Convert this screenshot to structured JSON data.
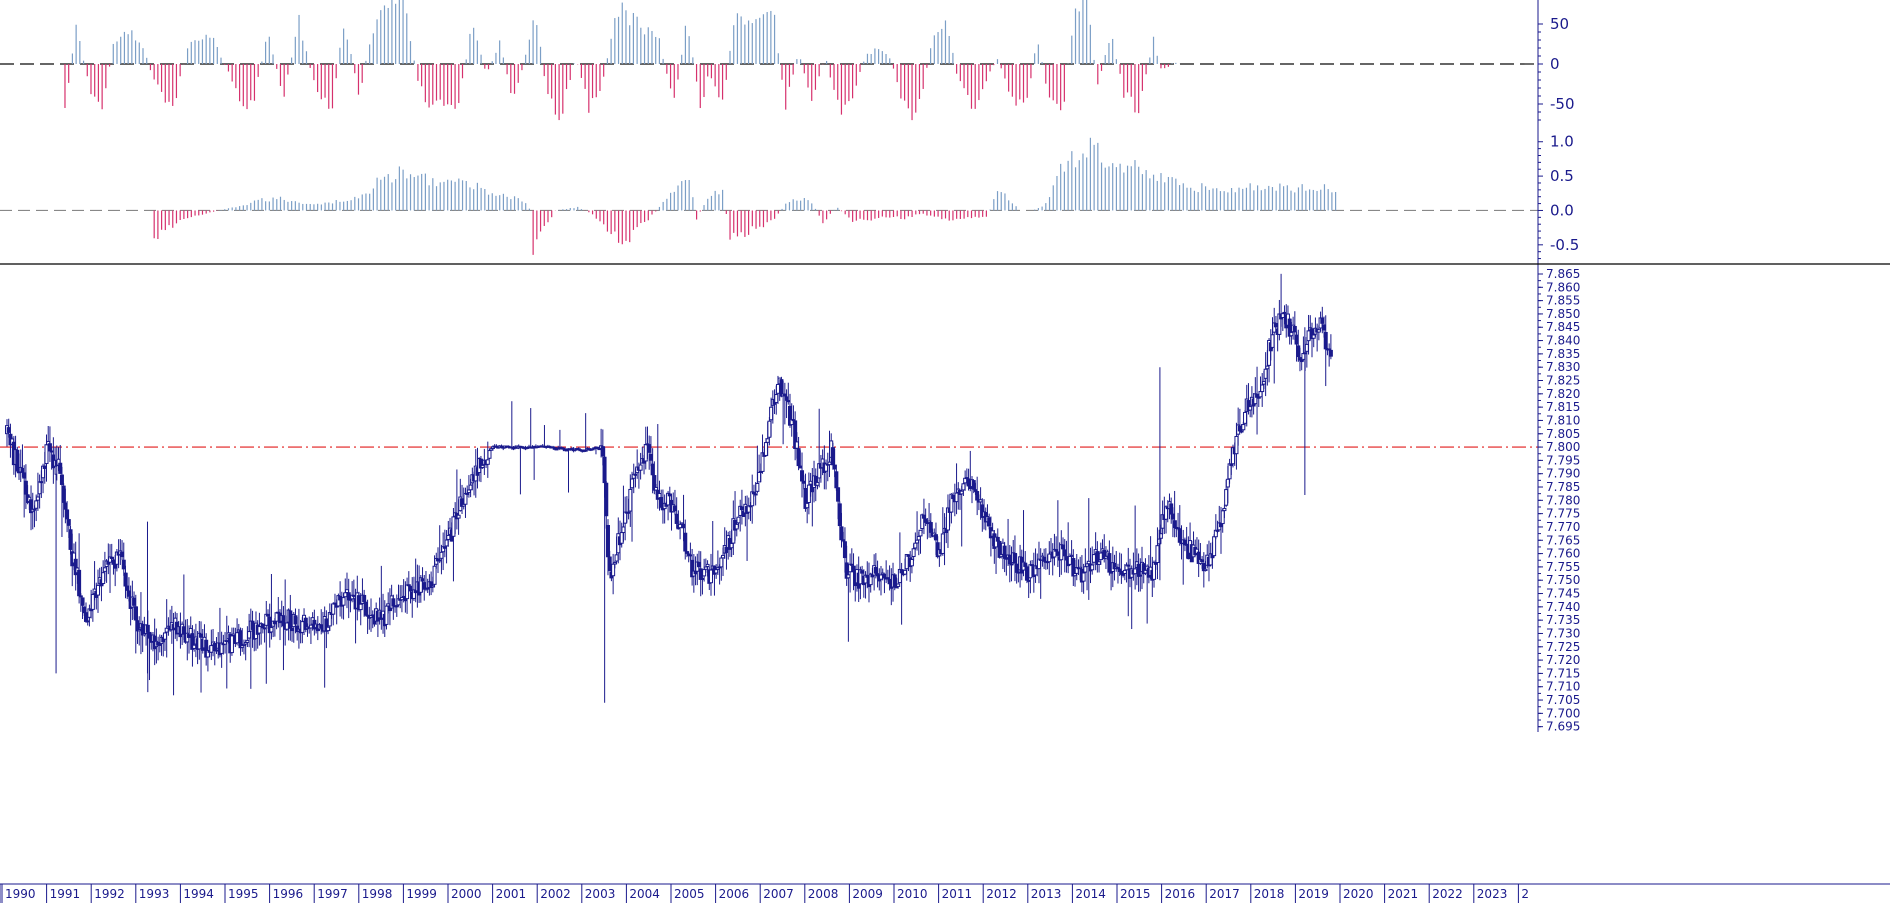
{
  "colors": {
    "axis": "#1a1a8c",
    "candle": "#1a1a8c",
    "positive": "#7b9ec6",
    "negative": "#d6316d",
    "reference": "#e21b1b",
    "zero_line_top": "#333333",
    "zero_line_mid": "#888888",
    "separator": "#000000"
  },
  "chart_data": [
    {
      "type": "bar",
      "panel": "top-oscillator",
      "ylim": [
        -80,
        80
      ],
      "y_ticks": [
        "50",
        "0",
        "-50"
      ],
      "y_tick_values": [
        50,
        0,
        -50
      ],
      "zero_line": "dashed",
      "x_start": 1991.3,
      "x_end": 2019.85,
      "x_step": 0.0833,
      "anchors": [
        [
          1991.3,
          -55
        ],
        [
          1991.55,
          48
        ],
        [
          1991.85,
          -30
        ],
        [
          1992.1,
          -70
        ],
        [
          1992.4,
          30
        ],
        [
          1992.75,
          40
        ],
        [
          1993.05,
          22
        ],
        [
          1993.35,
          -30
        ],
        [
          1993.7,
          -60
        ],
        [
          1994.1,
          30
        ],
        [
          1994.55,
          42
        ],
        [
          1994.95,
          -10
        ],
        [
          1995.3,
          -65
        ],
        [
          1995.55,
          -40
        ],
        [
          1995.85,
          40
        ],
        [
          1996.2,
          -45
        ],
        [
          1996.55,
          58
        ],
        [
          1996.9,
          -30
        ],
        [
          1997.3,
          -55
        ],
        [
          1997.55,
          60
        ],
        [
          1997.9,
          -40
        ],
        [
          1998.15,
          35
        ],
        [
          1998.55,
          82
        ],
        [
          1998.95,
          72
        ],
        [
          1999.2,
          -20
        ],
        [
          1999.45,
          -55
        ],
        [
          1999.8,
          -60
        ],
        [
          2000.15,
          -45
        ],
        [
          2000.45,
          60
        ],
        [
          2000.75,
          -15
        ],
        [
          2001.05,
          30
        ],
        [
          2001.35,
          -55
        ],
        [
          2001.6,
          5
        ],
        [
          2001.85,
          70
        ],
        [
          2002.1,
          -40
        ],
        [
          2002.4,
          -75
        ],
        [
          2002.75,
          10
        ],
        [
          2003.05,
          -60
        ],
        [
          2003.35,
          -30
        ],
        [
          2003.65,
          75
        ],
        [
          2003.95,
          60
        ],
        [
          2004.3,
          45
        ],
        [
          2004.6,
          40
        ],
        [
          2004.95,
          -60
        ],
        [
          2005.25,
          60
        ],
        [
          2005.55,
          -60
        ],
        [
          2005.75,
          -10
        ],
        [
          2006.05,
          -55
        ],
        [
          2006.3,
          60
        ],
        [
          2006.6,
          50
        ],
        [
          2006.9,
          55
        ],
        [
          2007.2,
          60
        ],
        [
          2007.45,
          -55
        ],
        [
          2007.75,
          15
        ],
        [
          2008.05,
          -45
        ],
        [
          2008.35,
          10
        ],
        [
          2008.65,
          -65
        ],
        [
          2008.95,
          -40
        ],
        [
          2009.25,
          10
        ],
        [
          2009.5,
          20
        ],
        [
          2009.8,
          8
        ],
        [
          2010.1,
          -50
        ],
        [
          2010.4,
          -70
        ],
        [
          2010.75,
          30
        ],
        [
          2011.05,
          60
        ],
        [
          2011.3,
          -15
        ],
        [
          2011.6,
          -60
        ],
        [
          2011.9,
          -30
        ],
        [
          2012.2,
          8
        ],
        [
          2012.5,
          -40
        ],
        [
          2012.85,
          -60
        ],
        [
          2013.1,
          35
        ],
        [
          2013.35,
          -40
        ],
        [
          2013.65,
          -70
        ],
        [
          2013.95,
          80
        ],
        [
          2014.2,
          85
        ],
        [
          2014.45,
          -30
        ],
        [
          2014.75,
          40
        ],
        [
          2015.05,
          -40
        ],
        [
          2015.4,
          -60
        ],
        [
          2015.7,
          35
        ],
        [
          2015.85,
          -5
        ],
        [
          2016.0,
          -5
        ],
        [
          2016.15,
          2
        ],
        [
          2016.3,
          0
        ]
      ]
    },
    {
      "type": "bar",
      "panel": "middle-oscillator",
      "ylim": [
        -0.75,
        1.2
      ],
      "y_ticks": [
        "1.0",
        "0.5",
        "0.0",
        "-0.5"
      ],
      "y_tick_values": [
        1.0,
        0.5,
        0.0,
        -0.5
      ],
      "zero_line": "dashed",
      "x_start": 1993.3,
      "x_end": 2019.85,
      "x_step": 0.0833,
      "anchors": [
        [
          1993.3,
          -0.4
        ],
        [
          1993.9,
          -0.15
        ],
        [
          1994.4,
          -0.05
        ],
        [
          1994.9,
          0.02
        ],
        [
          1995.3,
          0.08
        ],
        [
          1995.6,
          0.15
        ],
        [
          1996.1,
          0.18
        ],
        [
          1996.6,
          0.12
        ],
        [
          1997.0,
          0.1
        ],
        [
          1997.5,
          0.15
        ],
        [
          1997.95,
          0.2
        ],
        [
          1998.35,
          0.45
        ],
        [
          1998.8,
          0.57
        ],
        [
          1999.3,
          0.5
        ],
        [
          1999.8,
          0.45
        ],
        [
          2000.3,
          0.4
        ],
        [
          2000.8,
          0.3
        ],
        [
          2001.3,
          0.2
        ],
        [
          2001.7,
          0.12
        ],
        [
          2001.8,
          -0.6
        ],
        [
          2002.0,
          -0.3
        ],
        [
          2002.3,
          0.0
        ],
        [
          2002.8,
          0.05
        ],
        [
          2003.1,
          -0.05
        ],
        [
          2003.4,
          -0.25
        ],
        [
          2003.7,
          -0.45
        ],
        [
          2003.9,
          -0.45
        ],
        [
          2004.2,
          -0.25
        ],
        [
          2004.5,
          -0.05
        ],
        [
          2004.7,
          0.1
        ],
        [
          2004.95,
          0.3
        ],
        [
          2005.3,
          0.55
        ],
        [
          2005.45,
          -0.15
        ],
        [
          2005.7,
          0.2
        ],
        [
          2006.05,
          0.3
        ],
        [
          2006.2,
          -0.4
        ],
        [
          2006.5,
          -0.35
        ],
        [
          2006.9,
          -0.25
        ],
        [
          2007.2,
          -0.15
        ],
        [
          2007.45,
          0.1
        ],
        [
          2007.75,
          0.2
        ],
        [
          2008.05,
          0.12
        ],
        [
          2008.3,
          -0.18
        ],
        [
          2008.6,
          0.05
        ],
        [
          2008.95,
          -0.15
        ],
        [
          2009.3,
          -0.15
        ],
        [
          2009.7,
          -0.1
        ],
        [
          2010.1,
          -0.12
        ],
        [
          2010.5,
          -0.05
        ],
        [
          2010.9,
          -0.12
        ],
        [
          2011.3,
          -0.15
        ],
        [
          2011.7,
          -0.1
        ],
        [
          2012.0,
          -0.08
        ],
        [
          2012.2,
          0.35
        ],
        [
          2012.45,
          0.2
        ],
        [
          2012.7,
          0.0
        ],
        [
          2013.0,
          0.0
        ],
        [
          2013.3,
          0.1
        ],
        [
          2013.6,
          0.6
        ],
        [
          2013.95,
          0.8
        ],
        [
          2014.25,
          1.0
        ],
        [
          2014.55,
          0.8
        ],
        [
          2014.85,
          0.7
        ],
        [
          2015.15,
          0.75
        ],
        [
          2015.45,
          0.6
        ],
        [
          2015.75,
          0.5
        ],
        [
          2016.0,
          0.55
        ],
        [
          2016.3,
          0.35
        ]
      ]
    },
    {
      "type": "candlestick",
      "panel": "price",
      "ylim": [
        7.693,
        7.868
      ],
      "y_ticks": [
        "7.865",
        "7.860",
        "7.855",
        "7.850",
        "7.845",
        "7.840",
        "7.835",
        "7.830",
        "7.825",
        "7.820",
        "7.815",
        "7.810",
        "7.805",
        "7.800",
        "7.795",
        "7.790",
        "7.785",
        "7.780",
        "7.775",
        "7.770",
        "7.765",
        "7.760",
        "7.755",
        "7.750",
        "7.745",
        "7.740",
        "7.735",
        "7.730",
        "7.725",
        "7.720",
        "7.715",
        "7.710",
        "7.705",
        "7.700",
        "7.695"
      ],
      "reference_line": 7.8,
      "reference_style": "dash-dot",
      "x_start": 1990.0,
      "x_end": 2019.7,
      "x_step": 0.0385,
      "anchors": [
        [
          1990.0,
          7.805
        ],
        [
          1990.3,
          7.79
        ],
        [
          1990.6,
          7.775
        ],
        [
          1990.9,
          7.8
        ],
        [
          1991.2,
          7.79
        ],
        [
          1991.45,
          7.76
        ],
        [
          1991.8,
          7.735
        ],
        [
          1992.1,
          7.75
        ],
        [
          1992.5,
          7.76
        ],
        [
          1992.9,
          7.735
        ],
        [
          1993.3,
          7.725
        ],
        [
          1993.7,
          7.735
        ],
        [
          1994.0,
          7.73
        ],
        [
          1994.4,
          7.725
        ],
        [
          1994.8,
          7.725
        ],
        [
          1995.2,
          7.728
        ],
        [
          1995.6,
          7.732
        ],
        [
          1996.0,
          7.735
        ],
        [
          1996.4,
          7.735
        ],
        [
          1996.8,
          7.733
        ],
        [
          1997.2,
          7.735
        ],
        [
          1997.6,
          7.745
        ],
        [
          1998.0,
          7.74
        ],
        [
          1998.4,
          7.735
        ],
        [
          1998.8,
          7.745
        ],
        [
          1999.1,
          7.745
        ],
        [
          1999.5,
          7.75
        ],
        [
          1999.9,
          7.765
        ],
        [
          2000.3,
          7.785
        ],
        [
          2000.6,
          7.795
        ],
        [
          2000.9,
          7.8
        ],
        [
          2001.3,
          7.8
        ],
        [
          2001.7,
          7.8
        ],
        [
          2002.1,
          7.8
        ],
        [
          2002.6,
          7.799
        ],
        [
          2003.0,
          7.799
        ],
        [
          2003.35,
          7.8
        ],
        [
          2003.5,
          7.75
        ],
        [
          2003.8,
          7.77
        ],
        [
          2004.1,
          7.79
        ],
        [
          2004.35,
          7.8
        ],
        [
          2004.6,
          7.78
        ],
        [
          2004.85,
          7.78
        ],
        [
          2005.1,
          7.77
        ],
        [
          2005.35,
          7.755
        ],
        [
          2005.6,
          7.752
        ],
        [
          2005.85,
          7.752
        ],
        [
          2006.1,
          7.76
        ],
        [
          2006.4,
          7.775
        ],
        [
          2006.7,
          7.78
        ],
        [
          2007.0,
          7.8
        ],
        [
          2007.3,
          7.825
        ],
        [
          2007.6,
          7.81
        ],
        [
          2007.9,
          7.78
        ],
        [
          2008.2,
          7.79
        ],
        [
          2008.5,
          7.8
        ],
        [
          2008.8,
          7.755
        ],
        [
          2009.1,
          7.75
        ],
        [
          2009.4,
          7.752
        ],
        [
          2009.7,
          7.75
        ],
        [
          2010.0,
          7.75
        ],
        [
          2010.3,
          7.76
        ],
        [
          2010.6,
          7.775
        ],
        [
          2010.9,
          7.76
        ],
        [
          2011.2,
          7.78
        ],
        [
          2011.5,
          7.79
        ],
        [
          2011.8,
          7.78
        ],
        [
          2012.1,
          7.765
        ],
        [
          2012.4,
          7.76
        ],
        [
          2012.7,
          7.755
        ],
        [
          2013.0,
          7.752
        ],
        [
          2013.3,
          7.757
        ],
        [
          2013.6,
          7.76
        ],
        [
          2013.9,
          7.755
        ],
        [
          2014.2,
          7.752
        ],
        [
          2014.5,
          7.76
        ],
        [
          2014.8,
          7.755
        ],
        [
          2015.1,
          7.753
        ],
        [
          2015.4,
          7.753
        ],
        [
          2015.7,
          7.753
        ],
        [
          2016.0,
          7.78
        ],
        [
          2016.3,
          7.765
        ],
        [
          2016.6,
          7.76
        ],
        [
          2016.9,
          7.755
        ],
        [
          2017.2,
          7.77
        ],
        [
          2017.5,
          7.8
        ],
        [
          2017.8,
          7.815
        ],
        [
          2018.1,
          7.82
        ],
        [
          2018.4,
          7.845
        ],
        [
          2018.7,
          7.848
        ],
        [
          2019.0,
          7.835
        ],
        [
          2019.3,
          7.845
        ],
        [
          2019.5,
          7.845
        ],
        [
          2019.7,
          7.83
        ]
      ]
    }
  ],
  "x_axis": {
    "first_tick_year": 1990,
    "ticks": [
      "1990",
      "1991",
      "1992",
      "1993",
      "1994",
      "1995",
      "1996",
      "1997",
      "1998",
      "1999",
      "2000",
      "2001",
      "2002",
      "2003",
      "2004",
      "2005",
      "2006",
      "2007",
      "2008",
      "2009",
      "2010",
      "2011",
      "2012",
      "2013",
      "2014",
      "2015",
      "2016",
      "2017",
      "2018",
      "2019",
      "2020",
      "2021",
      "2022",
      "2023",
      "2"
    ]
  }
}
